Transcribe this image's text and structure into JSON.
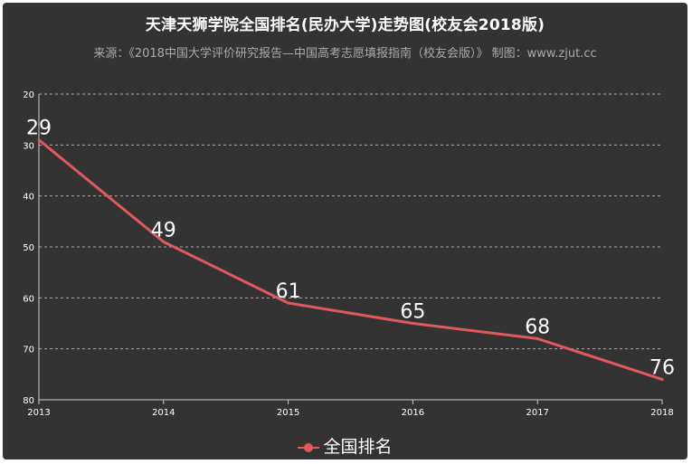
{
  "title": "天津天狮学院全国排名(民办大学)走势图(校友会2018版)",
  "subtitle": "来源：《2018中国大学评价研究报告—中国高考志愿填报指南（校友会版）》 制图：www.zjut.cc",
  "colors": {
    "background": "#333333",
    "series": "#e05a5a",
    "grid": "#aaaaaa"
  },
  "chart_data": {
    "type": "line",
    "title": "天津天狮学院全国排名(民办大学)走势图(校友会2018版)",
    "x": [
      "2013",
      "2014",
      "2015",
      "2016",
      "2017",
      "2018"
    ],
    "series": [
      {
        "name": "全国排名",
        "values": [
          29,
          49,
          61,
          65,
          68,
          76
        ]
      }
    ],
    "yticks": [
      20,
      30,
      40,
      50,
      60,
      70,
      80
    ],
    "ylim": [
      20,
      80
    ],
    "y_inverted": true,
    "grid": true,
    "legend": "bottom-center"
  }
}
